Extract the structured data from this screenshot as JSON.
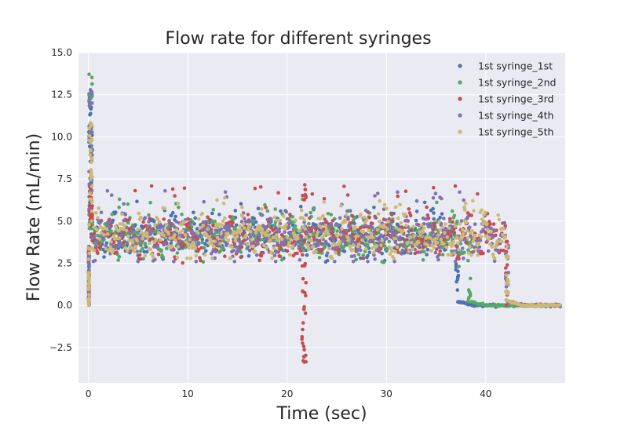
{
  "chart_data": {
    "type": "scatter",
    "title": "Flow rate for different syringes",
    "xlabel": "Time (sec)",
    "ylabel": "Flow Rate (mL/min)",
    "xlim": [
      -1,
      48
    ],
    "ylim": [
      -4.6,
      15.0
    ],
    "xticks": [
      0,
      10,
      20,
      30,
      40
    ],
    "yticks": [
      -2.5,
      0.0,
      2.5,
      5.0,
      7.5,
      10.0,
      12.5,
      15.0
    ],
    "ytick_labels": [
      "−2.5",
      "0.0",
      "2.5",
      "5.0",
      "7.5",
      "10.0",
      "12.5",
      "15.0"
    ],
    "grid": true,
    "legend_position": "top-right",
    "series": [
      {
        "name": "1st syringe_1st",
        "color": "#4C72B0",
        "end": 37.0,
        "peak": 12.6,
        "min": 2.5,
        "max": 6.2
      },
      {
        "name": "1st syringe_2nd",
        "color": "#55A868",
        "end": 38.2,
        "peak": 14.1,
        "min": 2.3,
        "max": 6.3
      },
      {
        "name": "1st syringe_3rd",
        "color": "#C44E52",
        "end": 42.0,
        "peak": 7.1,
        "min": -3.7,
        "max": 7.2
      },
      {
        "name": "1st syringe_4th",
        "color": "#8172B2",
        "end": 42.0,
        "peak": 12.9,
        "min": 2.6,
        "max": 6.8
      },
      {
        "name": "1st syringe_5th",
        "color": "#CCB974",
        "end": 42.0,
        "peak": 11.0,
        "min": 2.8,
        "max": 6.4
      }
    ]
  }
}
